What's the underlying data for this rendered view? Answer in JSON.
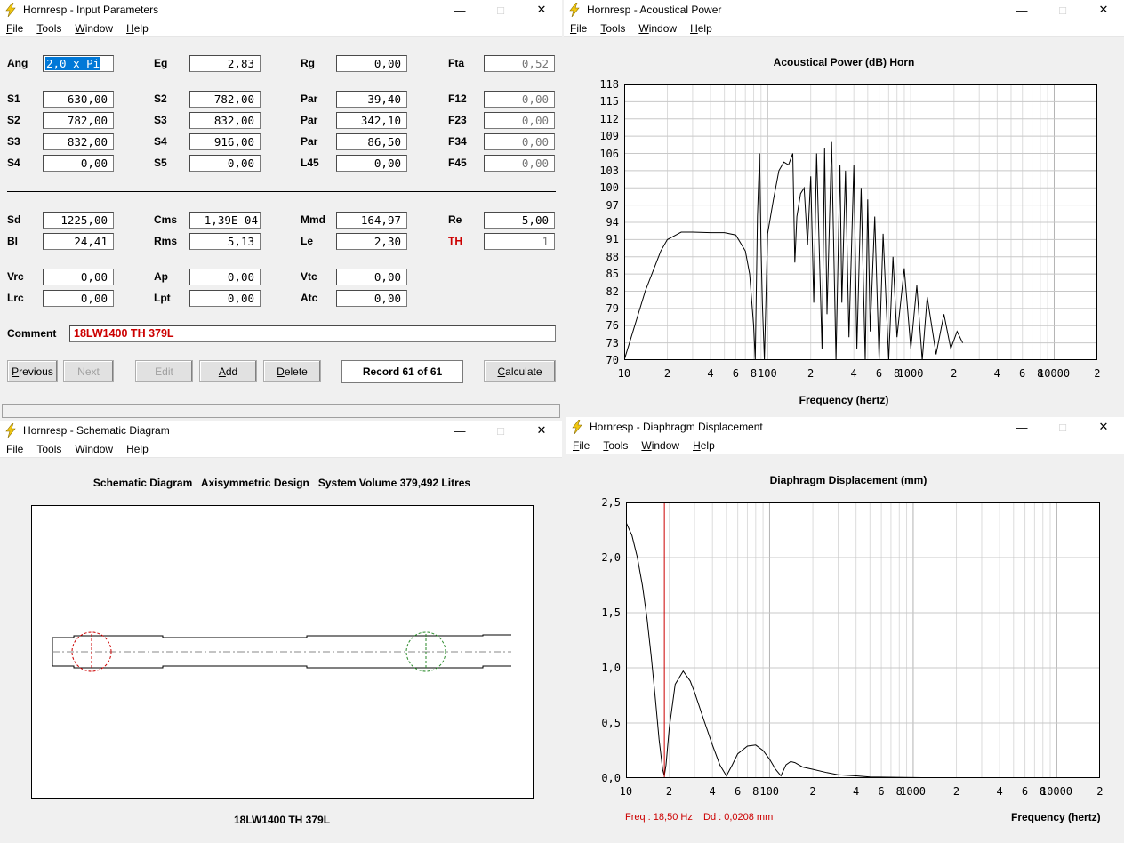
{
  "colors": {
    "accent": "#0078d7",
    "red": "#cc0000",
    "grid": "#c8c8c8",
    "bolt": "#f2c811"
  },
  "menu": [
    "File",
    "Tools",
    "Window",
    "Help"
  ],
  "input_window": {
    "title": "Hornresp - Input Parameters",
    "fields": {
      "ang": {
        "label": "Ang",
        "value": "2,0 x Pi"
      },
      "eg": {
        "label": "Eg",
        "value": "2,83"
      },
      "rg": {
        "label": "Rg",
        "value": "0,00"
      },
      "fta": {
        "label": "Fta",
        "value": "0,52"
      },
      "s1": {
        "label": "S1",
        "value": "630,00"
      },
      "s2b": {
        "label": "S2",
        "value": "782,00"
      },
      "par1": {
        "label": "Par",
        "value": "39,40"
      },
      "f12": {
        "label": "F12",
        "value": "0,00"
      },
      "s2": {
        "label": "S2",
        "value": "782,00"
      },
      "s3b": {
        "label": "S3",
        "value": "832,00"
      },
      "par2": {
        "label": "Par",
        "value": "342,10"
      },
      "f23": {
        "label": "F23",
        "value": "0,00"
      },
      "s3": {
        "label": "S3",
        "value": "832,00"
      },
      "s4b": {
        "label": "S4",
        "value": "916,00"
      },
      "par3": {
        "label": "Par",
        "value": "86,50"
      },
      "f34": {
        "label": "F34",
        "value": "0,00"
      },
      "s4": {
        "label": "S4",
        "value": "0,00"
      },
      "s5": {
        "label": "S5",
        "value": "0,00"
      },
      "l45": {
        "label": "L45",
        "value": "0,00"
      },
      "f45": {
        "label": "F45",
        "value": "0,00"
      },
      "sd": {
        "label": "Sd",
        "value": "1225,00"
      },
      "cms": {
        "label": "Cms",
        "value": "1,39E-04"
      },
      "mmd": {
        "label": "Mmd",
        "value": "164,97"
      },
      "re": {
        "label": "Re",
        "value": "5,00"
      },
      "bl": {
        "label": "Bl",
        "value": "24,41"
      },
      "rms": {
        "label": "Rms",
        "value": "5,13"
      },
      "le": {
        "label": "Le",
        "value": "2,30"
      },
      "th": {
        "label": "TH",
        "value": "1"
      },
      "vrc": {
        "label": "Vrc",
        "value": "0,00"
      },
      "ap": {
        "label": "Ap",
        "value": "0,00"
      },
      "vtc": {
        "label": "Vtc",
        "value": "0,00"
      },
      "lrc": {
        "label": "Lrc",
        "value": "0,00"
      },
      "lpt": {
        "label": "Lpt",
        "value": "0,00"
      },
      "atc": {
        "label": "Atc",
        "value": "0,00"
      }
    },
    "comment_label": "Comment",
    "comment": "18LW1400 TH 379L",
    "buttons": {
      "previous": "Previous",
      "next": "Next",
      "edit": "Edit",
      "add": "Add",
      "delete": "Delete",
      "record": "Record 61 of 61",
      "calculate": "Calculate"
    }
  },
  "power_window": {
    "title": "Hornresp - Acoustical Power",
    "plot_title": "Acoustical Power (dB)   Horn",
    "xlabel": "Frequency (hertz)",
    "y_ticks": [
      "118",
      "115",
      "112",
      "109",
      "106",
      "103",
      "100",
      "97",
      "94",
      "91",
      "88",
      "85",
      "82",
      "79",
      "76",
      "73",
      "70"
    ],
    "x_ticks": [
      "10",
      "2",
      "4",
      "6",
      "8",
      "100",
      "2",
      "4",
      "6",
      "8",
      "1000",
      "2",
      "4",
      "6",
      "8",
      "10000",
      "2"
    ]
  },
  "schematic_window": {
    "title": "Hornresp - Schematic Diagram",
    "header": "Schematic Diagram   Axisymmetric Design   System Volume 379,492 Litres",
    "footer": "18LW1400 TH 379L"
  },
  "disp_window": {
    "title": "Hornresp - Diaphragm Displacement",
    "plot_title": "Diaphragm Displacement (mm)",
    "xlabel": "Frequency (hertz)",
    "y_ticks": [
      "2,5",
      "2,0",
      "1,5",
      "1,0",
      "0,5",
      "0,0"
    ],
    "x_ticks": [
      "10",
      "2",
      "4",
      "6",
      "8",
      "100",
      "2",
      "4",
      "6",
      "8",
      "1000",
      "2",
      "4",
      "6",
      "8",
      "10000",
      "2"
    ],
    "freq_readout": "Freq : 18,50 Hz",
    "dd_readout": "Dd : 0,0208 mm"
  },
  "chart_data": [
    {
      "type": "line",
      "title": "Acoustical Power (dB)   Horn",
      "xlabel": "Frequency (hertz)",
      "ylabel": "",
      "xscale": "log",
      "xlim": [
        10,
        20000
      ],
      "ylim": [
        70,
        118
      ],
      "grid": true,
      "series": [
        {
          "x": [
            10,
            14,
            18,
            20,
            25,
            30,
            40,
            50,
            60,
            70,
            75,
            80,
            82,
            85,
            88,
            90,
            92,
            95,
            100,
            110,
            120,
            130,
            140,
            150,
            155,
            160,
            170,
            180,
            190,
            200,
            210,
            220,
            240,
            250,
            260,
            280,
            300,
            320,
            330,
            350,
            370,
            400,
            420,
            450,
            480,
            500,
            520,
            560,
            600,
            640,
            700,
            750,
            800,
            900,
            1000,
            1100,
            1200,
            1300,
            1500,
            1700,
            1900,
            2100,
            2300
          ],
          "y": [
            70,
            82,
            89,
            91,
            92.3,
            92.3,
            92.2,
            92.2,
            91.8,
            89,
            85,
            76,
            70,
            95,
            106,
            90,
            80,
            70,
            92,
            98,
            103,
            104.5,
            104,
            106,
            87,
            95,
            99,
            100,
            90,
            102,
            80,
            106,
            72,
            107,
            78,
            108,
            70,
            104,
            80,
            103,
            74,
            104,
            72,
            100,
            70,
            98,
            75,
            95,
            70,
            92,
            70,
            88,
            74,
            86,
            72,
            83,
            70,
            81,
            71,
            78,
            72,
            75,
            73
          ]
        }
      ]
    },
    {
      "type": "line",
      "title": "Diaphragm Displacement (mm)",
      "xlabel": "Frequency (hertz)",
      "ylabel": "",
      "xscale": "log",
      "xlim": [
        10,
        20000
      ],
      "ylim": [
        0,
        2.5
      ],
      "grid": true,
      "marker_x": 18.5,
      "series": [
        {
          "x": [
            10,
            11,
            12,
            13,
            14,
            15,
            16,
            17,
            18,
            18.5,
            19,
            20,
            22,
            25,
            28,
            30,
            35,
            40,
            45,
            50,
            55,
            60,
            70,
            80,
            90,
            100,
            110,
            120,
            130,
            140,
            150,
            170,
            200,
            250,
            300,
            400,
            500,
            1000,
            2000,
            20000
          ],
          "y": [
            2.32,
            2.2,
            2.0,
            1.75,
            1.45,
            1.1,
            0.72,
            0.35,
            0.08,
            0.02,
            0.12,
            0.45,
            0.85,
            0.97,
            0.88,
            0.78,
            0.52,
            0.3,
            0.12,
            0.02,
            0.12,
            0.22,
            0.29,
            0.3,
            0.25,
            0.17,
            0.08,
            0.02,
            0.12,
            0.15,
            0.14,
            0.1,
            0.08,
            0.05,
            0.03,
            0.02,
            0.01,
            0.005,
            0.0,
            0.0
          ]
        }
      ]
    }
  ]
}
